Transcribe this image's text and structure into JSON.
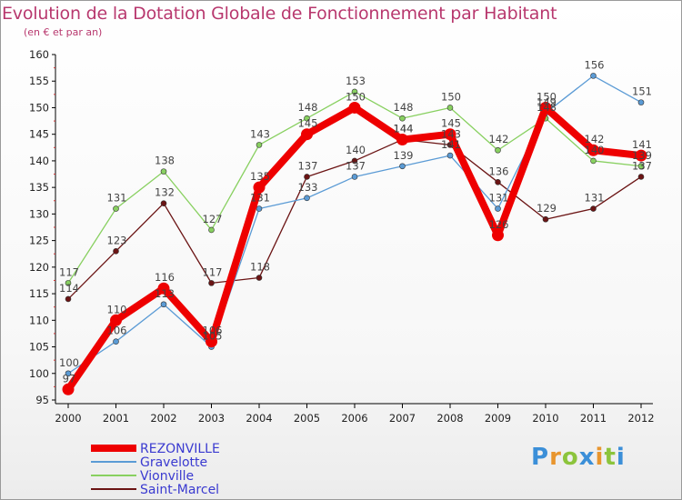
{
  "title": "Evolution de la Dotation Globale de Fonctionnement par Habitant",
  "subtitle": "(en € et par an)",
  "logo": {
    "text": "Proxiti",
    "letters": [
      "P",
      "r",
      "o",
      "x",
      "i",
      "t",
      "i"
    ],
    "colors": [
      "#3b8fd8",
      "#e8952e",
      "#8cc43c",
      "#3b8fd8",
      "#e8952e",
      "#8cc43c",
      "#3b8fd8"
    ]
  },
  "chart_data": {
    "type": "line",
    "x": [
      "2000",
      "2001",
      "2002",
      "2003",
      "2004",
      "2005",
      "2006",
      "2007",
      "2008",
      "2009",
      "2010",
      "2011",
      "2012"
    ],
    "ylim": [
      95,
      160
    ],
    "yticks": [
      95,
      100,
      105,
      110,
      115,
      120,
      125,
      130,
      135,
      140,
      145,
      150,
      155,
      160
    ],
    "grid": false,
    "legend_position": "bottom-left",
    "series": [
      {
        "name": "REZONVILLE",
        "color": "#ee0000",
        "values": [
          97,
          110,
          116,
          106,
          135,
          145,
          150,
          144,
          145,
          126,
          150,
          142,
          141
        ],
        "labels": [
          "97",
          "110",
          "116",
          "106",
          "135",
          "145",
          "150",
          "144",
          "145",
          "126",
          "150",
          "142",
          "141"
        ]
      },
      {
        "name": "Gravelotte",
        "color": "#5b9bd5",
        "values": [
          100,
          106,
          113,
          105,
          131,
          133,
          137,
          139,
          141,
          131,
          149,
          156,
          151
        ],
        "labels": [
          "100",
          "106",
          "113",
          "105",
          "131",
          "133",
          "137",
          "139",
          "141",
          "131",
          "149",
          "156",
          "151"
        ]
      },
      {
        "name": "Vionville",
        "color": "#88d060",
        "values": [
          117,
          131,
          138,
          127,
          143,
          148,
          153,
          148,
          150,
          142,
          148,
          140,
          139
        ],
        "labels": [
          "117",
          "131",
          "138",
          "127",
          "143",
          "148",
          "153",
          "148",
          "150",
          "142",
          "148",
          "140",
          "139"
        ]
      },
      {
        "name": "Saint-Marcel",
        "color": "#6b1414",
        "values": [
          114,
          123,
          132,
          117,
          118,
          137,
          140,
          144,
          143,
          136,
          129,
          131,
          137
        ],
        "labels": [
          "114",
          "123",
          "132",
          "117",
          "118",
          "137",
          "140",
          "144",
          "143",
          "136",
          "129",
          "131",
          "137"
        ]
      }
    ]
  }
}
